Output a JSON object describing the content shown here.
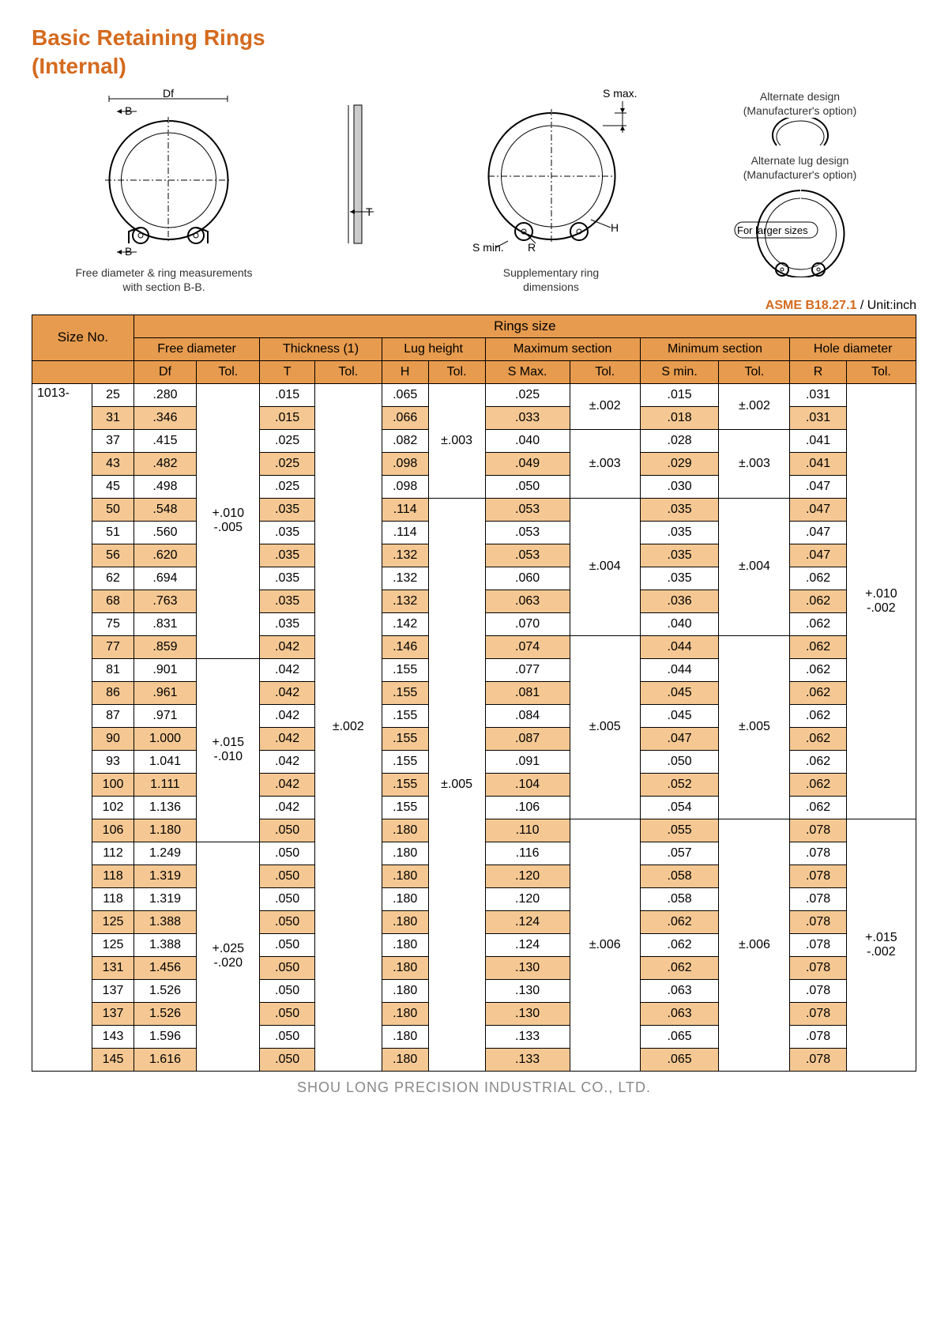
{
  "title_line1": "Basic Retaining Rings",
  "title_line2": "(Internal)",
  "diagram": {
    "df": "Df",
    "b_top": "B",
    "b_bot": "B",
    "t": "T",
    "smax": "S max.",
    "smin": "S min.",
    "r": "R",
    "h": "H",
    "caption1a": "Free diameter & ring measurements",
    "caption1b": "with section B-B.",
    "caption2a": "Supplementary ring",
    "caption2b": "dimensions",
    "alt1a": "Alternate design",
    "alt1b": "(Manufacturer's option)",
    "alt2a": "Alternate lug design",
    "alt2b": "(Manufacturer's option)",
    "alt3": "For larger sizes"
  },
  "standard_code": "ASME B18.27.1",
  "standard_unit": " / Unit:inch",
  "headers": {
    "size_no": "Size No.",
    "rings_size": "Rings size",
    "free_dia": "Free diameter",
    "thickness": "Thickness (1)",
    "lug_height": "Lug height",
    "max_section": "Maximum section",
    "min_section": "Minimum section",
    "hole_dia": "Hole diameter",
    "df": "Df",
    "t": "T",
    "h": "H",
    "smax": "S Max.",
    "smin": "S min.",
    "r": "R",
    "tol": "Tol."
  },
  "prefix": "1013-",
  "rows": [
    {
      "n": "25",
      "df": ".280",
      "t": ".015",
      "h": ".065",
      "smax": ".025",
      "smin": ".015",
      "r": ".031"
    },
    {
      "n": "31",
      "df": ".346",
      "t": ".015",
      "h": ".066",
      "smax": ".033",
      "smin": ".018",
      "r": ".031"
    },
    {
      "n": "37",
      "df": ".415",
      "t": ".025",
      "h": ".082",
      "smax": ".040",
      "smin": ".028",
      "r": ".041"
    },
    {
      "n": "43",
      "df": ".482",
      "t": ".025",
      "h": ".098",
      "smax": ".049",
      "smin": ".029",
      "r": ".041"
    },
    {
      "n": "45",
      "df": ".498",
      "t": ".025",
      "h": ".098",
      "smax": ".050",
      "smin": ".030",
      "r": ".047"
    },
    {
      "n": "50",
      "df": ".548",
      "t": ".035",
      "h": ".114",
      "smax": ".053",
      "smin": ".035",
      "r": ".047"
    },
    {
      "n": "51",
      "df": ".560",
      "t": ".035",
      "h": ".114",
      "smax": ".053",
      "smin": ".035",
      "r": ".047"
    },
    {
      "n": "56",
      "df": ".620",
      "t": ".035",
      "h": ".132",
      "smax": ".053",
      "smin": ".035",
      "r": ".047"
    },
    {
      "n": "62",
      "df": ".694",
      "t": ".035",
      "h": ".132",
      "smax": ".060",
      "smin": ".035",
      "r": ".062"
    },
    {
      "n": "68",
      "df": ".763",
      "t": ".035",
      "h": ".132",
      "smax": ".063",
      "smin": ".036",
      "r": ".062"
    },
    {
      "n": "75",
      "df": ".831",
      "t": ".035",
      "h": ".142",
      "smax": ".070",
      "smin": ".040",
      "r": ".062"
    },
    {
      "n": "77",
      "df": ".859",
      "t": ".042",
      "h": ".146",
      "smax": ".074",
      "smin": ".044",
      "r": ".062"
    },
    {
      "n": "81",
      "df": ".901",
      "t": ".042",
      "h": ".155",
      "smax": ".077",
      "smin": ".044",
      "r": ".062"
    },
    {
      "n": "86",
      "df": ".961",
      "t": ".042",
      "h": ".155",
      "smax": ".081",
      "smin": ".045",
      "r": ".062"
    },
    {
      "n": "87",
      "df": ".971",
      "t": ".042",
      "h": ".155",
      "smax": ".084",
      "smin": ".045",
      "r": ".062"
    },
    {
      "n": "90",
      "df": "1.000",
      "t": ".042",
      "h": ".155",
      "smax": ".087",
      "smin": ".047",
      "r": ".062"
    },
    {
      "n": "93",
      "df": "1.041",
      "t": ".042",
      "h": ".155",
      "smax": ".091",
      "smin": ".050",
      "r": ".062"
    },
    {
      "n": "100",
      "df": "1.111",
      "t": ".042",
      "h": ".155",
      "smax": ".104",
      "smin": ".052",
      "r": ".062"
    },
    {
      "n": "102",
      "df": "1.136",
      "t": ".042",
      "h": ".155",
      "smax": ".106",
      "smin": ".054",
      "r": ".062"
    },
    {
      "n": "106",
      "df": "1.180",
      "t": ".050",
      "h": ".180",
      "smax": ".110",
      "smin": ".055",
      "r": ".078"
    },
    {
      "n": "112",
      "df": "1.249",
      "t": ".050",
      "h": ".180",
      "smax": ".116",
      "smin": ".057",
      "r": ".078"
    },
    {
      "n": "118",
      "df": "1.319",
      "t": ".050",
      "h": ".180",
      "smax": ".120",
      "smin": ".058",
      "r": ".078"
    },
    {
      "n": "118",
      "df": "1.319",
      "t": ".050",
      "h": ".180",
      "smax": ".120",
      "smin": ".058",
      "r": ".078"
    },
    {
      "n": "125",
      "df": "1.388",
      "t": ".050",
      "h": ".180",
      "smax": ".124",
      "smin": ".062",
      "r": ".078"
    },
    {
      "n": "125",
      "df": "1.388",
      "t": ".050",
      "h": ".180",
      "smax": ".124",
      "smin": ".062",
      "r": ".078"
    },
    {
      "n": "131",
      "df": "1.456",
      "t": ".050",
      "h": ".180",
      "smax": ".130",
      "smin": ".062",
      "r": ".078"
    },
    {
      "n": "137",
      "df": "1.526",
      "t": ".050",
      "h": ".180",
      "smax": ".130",
      "smin": ".063",
      "r": ".078"
    },
    {
      "n": "137",
      "df": "1.526",
      "t": ".050",
      "h": ".180",
      "smax": ".130",
      "smin": ".063",
      "r": ".078"
    },
    {
      "n": "143",
      "df": "1.596",
      "t": ".050",
      "h": ".180",
      "smax": ".133",
      "smin": ".065",
      "r": ".078"
    },
    {
      "n": "145",
      "df": "1.616",
      "t": ".050",
      "h": ".180",
      "smax": ".133",
      "smin": ".065",
      "r": ".078"
    }
  ],
  "tol": {
    "df_g1": "+.010\n-.005",
    "df_g2": "+.015\n-.010",
    "df_g3": "+.025\n-.020",
    "t_all": "±.002",
    "h_g1": "±.003",
    "h_g2": "±.005",
    "smax_g1": "±.002",
    "smax_g2": "±.003",
    "smax_g3": "±.004",
    "smax_g4": "±.005",
    "smax_g5": "±.006",
    "smin_g1": "±.002",
    "smin_g2": "±.003",
    "smin_g3": "±.004",
    "smin_g4": "±.005",
    "smin_g5": "±.006",
    "r_g1": "+.010\n-.002",
    "r_g2": "+.015\n-.002"
  },
  "footer": "SHOU LONG PRECISION INDUSTRIAL CO., LTD."
}
